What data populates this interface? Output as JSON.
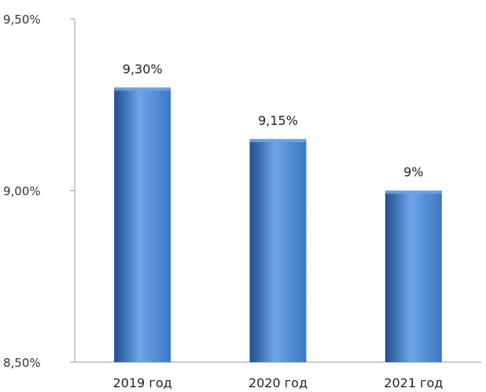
{
  "chart_data": {
    "type": "bar",
    "categories": [
      "2019 год",
      "2020 год",
      "2021 год"
    ],
    "values": [
      9.3,
      9.15,
      9.0
    ],
    "data_labels": [
      "9,30%",
      "9,15%",
      "9%"
    ],
    "y_ticks": [
      {
        "value": 8.5,
        "label": "8,50%"
      },
      {
        "value": 9.0,
        "label": "9,00%"
      },
      {
        "value": 9.5,
        "label": "9,50%"
      }
    ],
    "ylim": [
      8.5,
      9.5
    ],
    "grid": false,
    "bar_color": "#3b78c4",
    "bar_color_dark": "#1f4f8f",
    "bar_color_light": "#6ea4e6"
  }
}
